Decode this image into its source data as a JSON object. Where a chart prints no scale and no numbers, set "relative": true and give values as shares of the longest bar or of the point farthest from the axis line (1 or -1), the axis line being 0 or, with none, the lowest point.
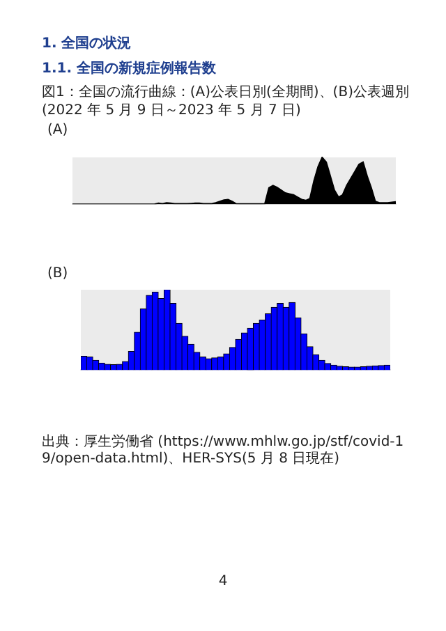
{
  "chart_data": [
    {
      "type": "area",
      "title": "図1：全国の流行曲線：(A)公表日別(全期間)、(B)公表週別(2022 年 5 月 9 日～2023 年 5 月 7 日)",
      "subtitle": "(A)",
      "annotations": [
        "1. 全国の状況",
        "1.1. 全国の新規症例報告数"
      ],
      "relative": true,
      "color": "#000000",
      "categories": [
        null,
        null,
        null,
        null,
        null,
        null,
        null,
        null,
        null,
        null,
        null,
        null,
        null,
        null,
        null,
        null,
        null,
        null,
        null,
        null,
        null,
        null,
        null,
        null,
        null,
        null,
        null,
        null,
        null,
        null,
        null,
        null,
        null,
        null,
        null,
        null,
        null,
        null,
        null,
        null,
        null,
        null,
        null,
        null,
        null,
        null,
        null,
        null,
        null,
        null,
        null,
        null,
        null,
        null,
        null,
        null,
        null,
        null,
        null,
        null,
        null,
        null,
        null,
        null,
        null,
        null,
        null,
        null,
        null,
        null,
        null,
        null,
        null,
        null,
        null,
        null,
        null,
        null,
        null,
        null
      ],
      "values": [
        0,
        0,
        0,
        0,
        0,
        0,
        0,
        0,
        0,
        0,
        0,
        0,
        0,
        0,
        0,
        0,
        0,
        0,
        0,
        0,
        0,
        0.02,
        0.01,
        0.03,
        0.02,
        0.01,
        0.01,
        0.01,
        0.01,
        0.015,
        0.02,
        0.02,
        0.01,
        0.01,
        0.01,
        0.03,
        0.06,
        0.09,
        0.1,
        0.06,
        0.01,
        0.005,
        0.005,
        0.005,
        0.005,
        0.005,
        0.005,
        0.01,
        0.35,
        0.4,
        0.36,
        0.3,
        0.24,
        0.22,
        0.2,
        0.15,
        0.1,
        0.08,
        0.12,
        0.5,
        0.8,
        1,
        0.9,
        0.6,
        0.3,
        0.15,
        0.2,
        0.4,
        0.55,
        0.7,
        0.85,
        0.9,
        0.6,
        0.35,
        0.06,
        0.03,
        0.03,
        0.03,
        0.04,
        0.05
      ]
    },
    {
      "type": "bar",
      "subtitle": "(B)",
      "annotations": [
        "出典：厚生労働省 (https://www.mhlw.go.jp/stf/covid-19/open-data.html)、HER-SYS(5 月 8 日現在)",
        "4"
      ],
      "relative": true,
      "color": "#0000ff",
      "categories": [
        null,
        null,
        null,
        null,
        null,
        null,
        null,
        null,
        null,
        null,
        null,
        null,
        null,
        null,
        null,
        null,
        null,
        null,
        null,
        null,
        null,
        null,
        null,
        null,
        null,
        null,
        null,
        null,
        null,
        null,
        null,
        null,
        null,
        null,
        null,
        null,
        null,
        null,
        null,
        null,
        null,
        null,
        null,
        null,
        null,
        null,
        null,
        null,
        null,
        null,
        null,
        null
      ],
      "values": [
        0.17,
        0.16,
        0.12,
        0.085,
        0.07,
        0.065,
        0.07,
        0.105,
        0.23,
        0.47,
        0.76,
        0.93,
        0.97,
        0.89,
        1,
        0.83,
        0.58,
        0.42,
        0.32,
        0.22,
        0.16,
        0.14,
        0.15,
        0.16,
        0.2,
        0.28,
        0.38,
        0.46,
        0.52,
        0.58,
        0.62,
        0.7,
        0.78,
        0.83,
        0.78,
        0.84,
        0.65,
        0.45,
        0.29,
        0.19,
        0.12,
        0.08,
        0.06,
        0.045,
        0.04,
        0.035,
        0.035,
        0.04,
        0.045,
        0.05,
        0.055,
        0.06
      ]
    }
  ]
}
